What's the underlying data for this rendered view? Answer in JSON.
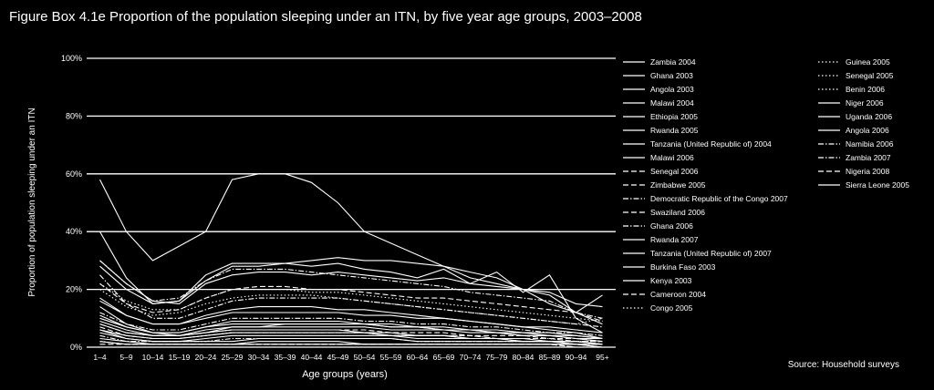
{
  "title": "Figure Box 4.1e Proportion of the population sleeping under an ITN, by five year age groups, 2003–2008",
  "source": "Source: Household surveys",
  "chart_data": {
    "type": "line",
    "title": "Figure Box 4.1e Proportion of the population sleeping under an ITN, by five year age groups, 2003–2008",
    "xlabel": "Age groups (years)",
    "ylabel": "Proportion of population sleeping under an ITN",
    "ylim": [
      0,
      100
    ],
    "yticks": [
      "0%",
      "20%",
      "40%",
      "60%",
      "80%",
      "100%"
    ],
    "grid": true,
    "legend_position": "right",
    "categories": [
      "1–4",
      "5–9",
      "10–14",
      "15–19",
      "20–24",
      "25–29",
      "30–34",
      "35–39",
      "40–44",
      "45–49",
      "50–54",
      "55–59",
      "60–64",
      "65–69",
      "70–74",
      "75–79",
      "80–84",
      "85–89",
      "90–94",
      "95+"
    ],
    "series": [
      {
        "name": "Zambia 2004",
        "dash": "solid",
        "values": [
          14,
          8,
          5,
          4,
          5,
          6,
          6,
          6,
          6,
          6,
          5,
          5,
          4,
          4,
          3,
          3,
          2,
          2,
          2,
          1
        ]
      },
      {
        "name": "Ghana 2003",
        "dash": "solid",
        "values": [
          5,
          3,
          2,
          2,
          2,
          2,
          3,
          3,
          3,
          3,
          3,
          3,
          2,
          2,
          2,
          2,
          2,
          2,
          1,
          1
        ]
      },
      {
        "name": "Angola 2003",
        "dash": "solid",
        "values": [
          3,
          2,
          1,
          1,
          1,
          1,
          2,
          2,
          2,
          2,
          1,
          1,
          1,
          1,
          1,
          1,
          1,
          1,
          1,
          0
        ]
      },
      {
        "name": "Malawi 2004",
        "dash": "solid",
        "values": [
          28,
          20,
          15,
          16,
          23,
          28,
          28,
          29,
          30,
          31,
          30,
          30,
          29,
          28,
          26,
          24,
          20,
          18,
          12,
          8
        ]
      },
      {
        "name": "Ethiopia 2005",
        "dash": "solid",
        "values": [
          6,
          4,
          3,
          3,
          4,
          5,
          5,
          5,
          5,
          5,
          5,
          4,
          4,
          4,
          3,
          3,
          3,
          2,
          2,
          1
        ]
      },
      {
        "name": "Rwanda 2005",
        "dash": "solid",
        "values": [
          17,
          11,
          8,
          8,
          11,
          13,
          14,
          14,
          14,
          13,
          13,
          12,
          11,
          10,
          9,
          8,
          7,
          6,
          5,
          3
        ]
      },
      {
        "name": "Tanzania (United Republic of) 2004",
        "dash": "solid",
        "values": [
          8,
          5,
          4,
          4,
          5,
          7,
          7,
          8,
          8,
          8,
          8,
          7,
          7,
          6,
          6,
          5,
          4,
          4,
          3,
          2
        ]
      },
      {
        "name": "Malawi 2006",
        "dash": "solid",
        "values": [
          40,
          24,
          15,
          16,
          25,
          29,
          29,
          29,
          28,
          29,
          27,
          26,
          24,
          27,
          22,
          26,
          19,
          25,
          10,
          5
        ]
      },
      {
        "name": "Senegal 2006",
        "dash": "dashed",
        "values": [
          22,
          15,
          12,
          13,
          17,
          20,
          21,
          21,
          20,
          20,
          19,
          18,
          17,
          17,
          16,
          15,
          14,
          13,
          12,
          9
        ]
      },
      {
        "name": "Zimbabwe 2005",
        "dash": "dashed",
        "values": [
          7,
          4,
          3,
          3,
          4,
          5,
          5,
          5,
          5,
          5,
          5,
          4,
          4,
          4,
          4,
          3,
          3,
          3,
          2,
          2
        ]
      },
      {
        "name": "Democratic Republic of the Congo 2007",
        "dash": "dash-dot",
        "values": [
          12,
          8,
          6,
          6,
          8,
          10,
          10,
          10,
          10,
          10,
          9,
          9,
          8,
          8,
          7,
          7,
          6,
          5,
          5,
          4
        ]
      },
      {
        "name": "Swaziland 2006",
        "dash": "dashed",
        "values": [
          2,
          1,
          1,
          1,
          1,
          1,
          1,
          1,
          1,
          1,
          1,
          1,
          1,
          1,
          1,
          1,
          1,
          1,
          0,
          0
        ]
      },
      {
        "name": "Ghana 2006",
        "dash": "dash-dot",
        "values": [
          25,
          15,
          10,
          10,
          13,
          16,
          17,
          17,
          17,
          17,
          16,
          15,
          14,
          13,
          12,
          11,
          10,
          9,
          8,
          7
        ]
      },
      {
        "name": "Rwanda 2007",
        "dash": "solid",
        "values": [
          58,
          40,
          30,
          35,
          40,
          58,
          60,
          60,
          57,
          50,
          40,
          36,
          32,
          28,
          24,
          22,
          20,
          15,
          12,
          18
        ]
      },
      {
        "name": "Tanzania (United Republic of) 2007",
        "dash": "solid",
        "values": [
          30,
          22,
          16,
          15,
          22,
          25,
          26,
          26,
          25,
          26,
          25,
          24,
          23,
          24,
          22,
          21,
          20,
          19,
          15,
          14
        ]
      },
      {
        "name": "Burkina Faso 2003",
        "dash": "solid",
        "values": [
          2,
          1,
          1,
          1,
          1,
          1,
          1,
          1,
          1,
          1,
          1,
          1,
          1,
          1,
          1,
          1,
          1,
          1,
          1,
          0
        ]
      },
      {
        "name": "Kenya 2003",
        "dash": "solid",
        "values": [
          6,
          3,
          2,
          2,
          3,
          4,
          4,
          4,
          4,
          4,
          4,
          4,
          3,
          3,
          3,
          3,
          2,
          2,
          2,
          1
        ]
      },
      {
        "name": "Cameroon 2004",
        "dash": "dashed",
        "values": [
          1,
          1,
          1,
          1,
          1,
          1,
          1,
          1,
          1,
          1,
          1,
          1,
          1,
          1,
          1,
          1,
          1,
          1,
          0,
          0
        ]
      },
      {
        "name": "Congo 2005",
        "dash": "dotted",
        "values": [
          6,
          4,
          3,
          3,
          4,
          5,
          5,
          5,
          5,
          5,
          5,
          4,
          4,
          4,
          4,
          3,
          3,
          3,
          2,
          2
        ]
      },
      {
        "name": "Guinea 2005",
        "dash": "dotted",
        "values": [
          2,
          1,
          1,
          1,
          1,
          1,
          1,
          1,
          1,
          1,
          1,
          1,
          1,
          1,
          1,
          1,
          1,
          1,
          0,
          0
        ]
      },
      {
        "name": "Senegal 2005",
        "dash": "dotted",
        "values": [
          20,
          14,
          11,
          12,
          15,
          17,
          18,
          18,
          18,
          17,
          16,
          15,
          14,
          13,
          12,
          11,
          10,
          9,
          8,
          10
        ]
      },
      {
        "name": "Benin 2006",
        "dash": "dotted",
        "values": [
          22,
          16,
          13,
          13,
          17,
          20,
          20,
          20,
          19,
          19,
          18,
          17,
          16,
          15,
          14,
          13,
          12,
          11,
          10,
          9
        ]
      },
      {
        "name": "Niger 2006",
        "dash": "solid",
        "values": [
          10,
          7,
          5,
          5,
          7,
          8,
          8,
          8,
          8,
          8,
          8,
          7,
          7,
          6,
          6,
          5,
          5,
          4,
          4,
          3
        ]
      },
      {
        "name": "Uganda 2006",
        "dash": "solid",
        "values": [
          9,
          6,
          4,
          4,
          6,
          7,
          7,
          7,
          7,
          7,
          7,
          6,
          6,
          6,
          5,
          5,
          4,
          4,
          3,
          3
        ]
      },
      {
        "name": "Angola 2006",
        "dash": "solid",
        "values": [
          16,
          11,
          8,
          8,
          10,
          12,
          12,
          12,
          12,
          12,
          11,
          11,
          10,
          10,
          9,
          8,
          7,
          7,
          6,
          5
        ]
      },
      {
        "name": "Namibia 2006",
        "dash": "dash-dot",
        "values": [
          4,
          2,
          2,
          2,
          2,
          3,
          3,
          3,
          3,
          3,
          3,
          3,
          2,
          2,
          2,
          2,
          2,
          2,
          1,
          1
        ]
      },
      {
        "name": "Zambia 2007",
        "dash": "dash-dot",
        "values": [
          30,
          22,
          16,
          17,
          23,
          27,
          27,
          27,
          26,
          25,
          24,
          23,
          22,
          21,
          19,
          18,
          17,
          16,
          12,
          10
        ]
      },
      {
        "name": "Nigeria 2008",
        "dash": "dashed",
        "values": [
          8,
          5,
          4,
          4,
          5,
          6,
          6,
          6,
          6,
          6,
          6,
          5,
          5,
          5,
          4,
          4,
          4,
          3,
          3,
          2
        ]
      },
      {
        "name": "Sierra Leone 2005",
        "dash": "solid",
        "values": [
          11,
          7,
          5,
          5,
          7,
          9,
          9,
          9,
          9,
          9,
          8,
          8,
          7,
          7,
          6,
          6,
          5,
          5,
          4,
          3
        ]
      }
    ]
  }
}
